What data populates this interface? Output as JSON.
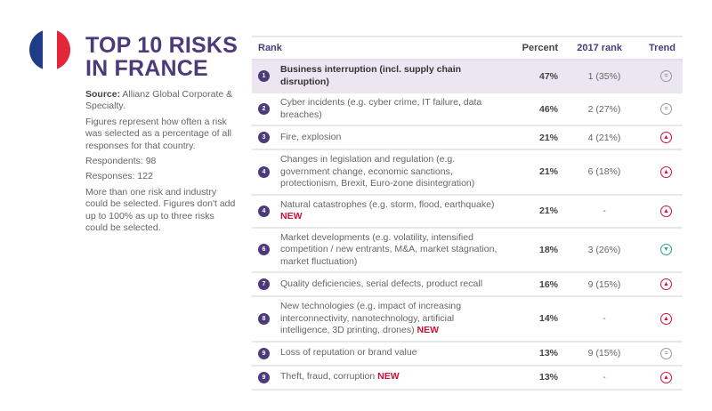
{
  "header": {
    "title_line1": "TOP 10 RISKS",
    "title_line2": "IN FRANCE",
    "flag_colors": [
      "#1f3c88",
      "#ffffff",
      "#e3263a"
    ]
  },
  "sidebar": {
    "source_label": "Source:",
    "source_text": " Allianz Global Corporate & Specialty.",
    "note": "Figures represent how often a risk was selected as a percentage of all responses for that country.",
    "respondents": "Respondents: 98",
    "responses": "Responses: 122",
    "disclaimer": "More than one risk and industry could be selected. Figures don't add up to 100% as up to three risks could be selected."
  },
  "table": {
    "columns": {
      "rank": "Rank",
      "percent": "Percent",
      "prev_rank": "2017 rank",
      "trend": "Trend"
    },
    "new_label": "NEW",
    "rows": [
      {
        "rank": "1",
        "risk": "Business interruption (incl. supply chain disruption)",
        "new": "",
        "percent": "47%",
        "prev": "1 (35%)",
        "trend": "equal",
        "trend_glyph": "="
      },
      {
        "rank": "2",
        "risk": "Cyber incidents (e.g. cyber crime, IT failure, data breaches)",
        "new": "",
        "percent": "46%",
        "prev": "2 (27%)",
        "trend": "equal",
        "trend_glyph": "="
      },
      {
        "rank": "3",
        "risk": "Fire, explosion",
        "new": "",
        "percent": "21%",
        "prev": "4 (21%)",
        "trend": "up",
        "trend_glyph": "▲"
      },
      {
        "rank": "4",
        "risk": "Changes in legislation and regulation (e.g. government change, economic sanctions, protectionism, Brexit, Euro-zone disintegration)",
        "new": "",
        "percent": "21%",
        "prev": "6 (18%)",
        "trend": "up",
        "trend_glyph": "▲"
      },
      {
        "rank": "4",
        "risk": "Natural catastrophes (e.g. storm, flood, earthquake)",
        "new": "NEW",
        "percent": "21%",
        "prev": "-",
        "trend": "up",
        "trend_glyph": "▲"
      },
      {
        "rank": "6",
        "risk": "Market developments (e.g. volatility, intensified competition / new entrants, M&A, market stagnation, market fluctuation)",
        "new": "",
        "percent": "18%",
        "prev": "3 (26%)",
        "trend": "down",
        "trend_glyph": "▼"
      },
      {
        "rank": "7",
        "risk": "Quality deficiencies, serial defects, product recall",
        "new": "",
        "percent": "16%",
        "prev": "9 (15%)",
        "trend": "up",
        "trend_glyph": "▲"
      },
      {
        "rank": "8",
        "risk": "New technologies (e.g. impact of increasing interconnectivity, nanotechnology, artificial intelligence, 3D printing, drones)",
        "new": "NEW",
        "percent": "14%",
        "prev": "-",
        "trend": "up",
        "trend_glyph": "▲"
      },
      {
        "rank": "9",
        "risk": "Loss of reputation or brand value",
        "new": "",
        "percent": "13%",
        "prev": "9 (15%)",
        "trend": "equal",
        "trend_glyph": "="
      },
      {
        "rank": "9",
        "risk": "Theft, fraud, corruption",
        "new": "NEW",
        "percent": "13%",
        "prev": "-",
        "trend": "up",
        "trend_glyph": "▲"
      }
    ]
  }
}
